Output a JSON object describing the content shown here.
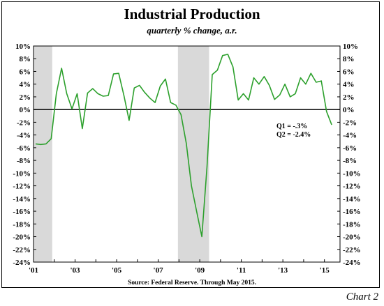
{
  "header": {
    "title": "Industrial Production",
    "subtitle": "quarterly % change, a.r."
  },
  "footer": {
    "source": "Source: Federal Reserve. Through May 2015.",
    "chart_tag": "Chart 2"
  },
  "colors": {
    "line": "#2ca02c",
    "recession": "#d9d9d9",
    "axis": "#000000"
  },
  "annotation": {
    "q1": "Q1 = -.3%",
    "q2": "Q2 = -2.4%"
  },
  "chart_data": {
    "type": "line",
    "title": "Industrial Production",
    "subtitle": "quarterly % change, a.r.",
    "ylim": [
      -24,
      10
    ],
    "yticks": [
      10,
      8,
      6,
      4,
      2,
      0,
      -2,
      -4,
      -6,
      -8,
      -10,
      -12,
      -14,
      -16,
      -18,
      -20,
      -22,
      -24
    ],
    "ytick_labels": [
      "10%",
      "8%",
      "6%",
      "4%",
      "2%",
      "0%",
      "-2%",
      "-4%",
      "-6%",
      "-8%",
      "-10%",
      "-12%",
      "-14%",
      "-16%",
      "-18%",
      "-20%",
      "-22%",
      "-24%"
    ],
    "xlim": [
      2001.0,
      2015.75
    ],
    "xticks": [
      2001,
      2003,
      2005,
      2007,
      2009,
      2011,
      2013,
      2015
    ],
    "xtick_labels": [
      "'01",
      "'03",
      "'05",
      "'07",
      "'09",
      "'11",
      "'13",
      "'15"
    ],
    "recessions": [
      [
        2001.0,
        2001.9
      ],
      [
        2007.95,
        2009.45
      ]
    ],
    "grid": false,
    "series": [
      {
        "x": [
          2001.1,
          2001.35,
          2001.6,
          2001.85,
          2002.1,
          2002.35,
          2002.6,
          2002.85,
          2003.1,
          2003.35,
          2003.6,
          2003.85,
          2004.1,
          2004.35,
          2004.6,
          2004.85,
          2005.1,
          2005.35,
          2005.6,
          2005.85,
          2006.1,
          2006.35,
          2006.6,
          2006.85,
          2007.1,
          2007.35,
          2007.6,
          2007.85,
          2008.1,
          2008.35,
          2008.6,
          2008.85,
          2009.1,
          2009.35,
          2009.6,
          2009.85,
          2010.1,
          2010.35,
          2010.6,
          2010.85,
          2011.1,
          2011.35,
          2011.6,
          2011.85,
          2012.1,
          2012.35,
          2012.6,
          2012.85,
          2013.1,
          2013.35,
          2013.6,
          2013.85,
          2014.1,
          2014.35,
          2014.6,
          2014.85,
          2015.1,
          2015.35
        ],
        "values": [
          -5.4,
          -5.5,
          -5.4,
          -4.6,
          2.5,
          6.5,
          2.5,
          0.1,
          2.5,
          -3.0,
          2.6,
          3.3,
          2.5,
          2.1,
          2.2,
          5.6,
          5.7,
          2.2,
          -1.7,
          3.4,
          3.8,
          2.7,
          1.8,
          1.1,
          3.7,
          4.8,
          1.1,
          0.7,
          -0.8,
          -5.3,
          -12.0,
          -16.0,
          -20.0,
          -9.0,
          5.5,
          6.2,
          8.5,
          8.7,
          6.7,
          1.5,
          2.5,
          1.5,
          5.0,
          4.0,
          5.2,
          3.8,
          1.6,
          2.3,
          4.0,
          2.0,
          2.5,
          5.0,
          4.0,
          5.7,
          4.3,
          4.5,
          -0.3,
          -2.4
        ]
      }
    ]
  }
}
